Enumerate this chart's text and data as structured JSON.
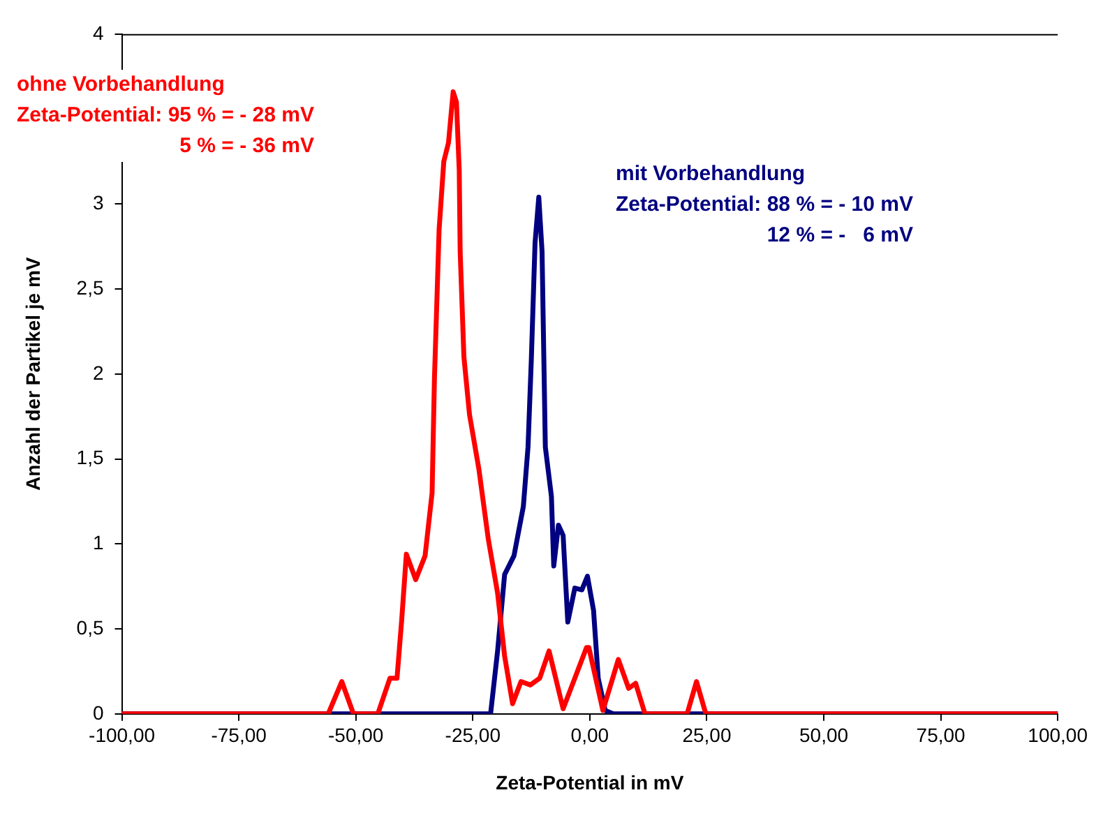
{
  "chart_data": {
    "type": "line",
    "xlabel": "Zeta-Potential in mV",
    "ylabel": "Anzahl der Partikel je mV",
    "xlim": [
      -100,
      100
    ],
    "ylim": [
      0,
      4
    ],
    "xticks": [
      {
        "value": -100,
        "label": "-100,00"
      },
      {
        "value": -75,
        "label": "-75,00"
      },
      {
        "value": -50,
        "label": "-50,00"
      },
      {
        "value": -25,
        "label": "-25,00"
      },
      {
        "value": 0,
        "label": "0,00"
      },
      {
        "value": 25,
        "label": "25,00"
      },
      {
        "value": 50,
        "label": "50,00"
      },
      {
        "value": 75,
        "label": "75,00"
      },
      {
        "value": 100,
        "label": "100,00"
      }
    ],
    "yticks": [
      0,
      {
        "value": 0.5,
        "label": "0,5"
      },
      1,
      {
        "value": 1.5,
        "label": "1,5"
      },
      2,
      {
        "value": 2.5,
        "label": "2,5"
      },
      3,
      {
        "value": 3.5,
        "label": null
      },
      4
    ],
    "grid": false,
    "legend": false,
    "marker": "none",
    "line_style": "solid",
    "annotations": [
      "ohne Vorbehandlung\nZeta-Potential: 95 % = - 28 mV\n5 % = - 36 mV",
      "mit Vorbehandlung\nZeta-Potential: 88 % = - 10 mV\n12 % = -   6 mV"
    ],
    "series": [
      {
        "color": "#ff0000",
        "x": [
          -100,
          -55.9,
          -53,
          -50.5,
          -45.3,
          -42.7,
          -41.2,
          -40.2,
          -39.2,
          -37.2,
          -35.2,
          -33.7,
          -33.2,
          -32.2,
          -31.2,
          -30.2,
          -29.2,
          -28.5,
          -27.9,
          -27.7,
          -26.9,
          -25.7,
          -23.7,
          -21.7,
          -19.7,
          -18.2,
          -16.5,
          -14.7,
          -12.7,
          -10.7,
          -8.7,
          -5.7,
          -3.2,
          -0.7,
          -0.2,
          2.8,
          6.1,
          8.3,
          9.8,
          11.8,
          20.8,
          22.8,
          24.8,
          100
        ],
        "values": [
          0,
          0,
          0.19,
          0,
          0,
          0.21,
          0.21,
          0.55,
          0.94,
          0.79,
          0.93,
          1.3,
          1.97,
          2.85,
          3.25,
          3.36,
          3.66,
          3.6,
          3.2,
          2.72,
          2.1,
          1.76,
          1.44,
          1.03,
          0.71,
          0.34,
          0.06,
          0.19,
          0.17,
          0.21,
          0.37,
          0.03,
          0.21,
          0.39,
          0.39,
          0.02,
          0.32,
          0.15,
          0.18,
          0,
          0,
          0.19,
          0,
          0
        ]
      },
      {
        "color": "#000080",
        "x": [
          -100,
          -21.2,
          -19.7,
          -18.2,
          -16.2,
          -14.2,
          -13.2,
          -12.5,
          -11.7,
          -10.9,
          -10.2,
          -9.5,
          -8.2,
          -7.7,
          -6.7,
          -5.7,
          -4.7,
          -3.2,
          -1.7,
          -0.5,
          0.8,
          1.8,
          3.3,
          5,
          100
        ],
        "values": [
          0,
          0,
          0.37,
          0.82,
          0.93,
          1.22,
          1.57,
          2.08,
          2.77,
          3.04,
          2.72,
          1.57,
          1.28,
          0.87,
          1.11,
          1.05,
          0.54,
          0.74,
          0.73,
          0.81,
          0.61,
          0.21,
          0.02,
          0,
          0
        ]
      }
    ]
  }
}
